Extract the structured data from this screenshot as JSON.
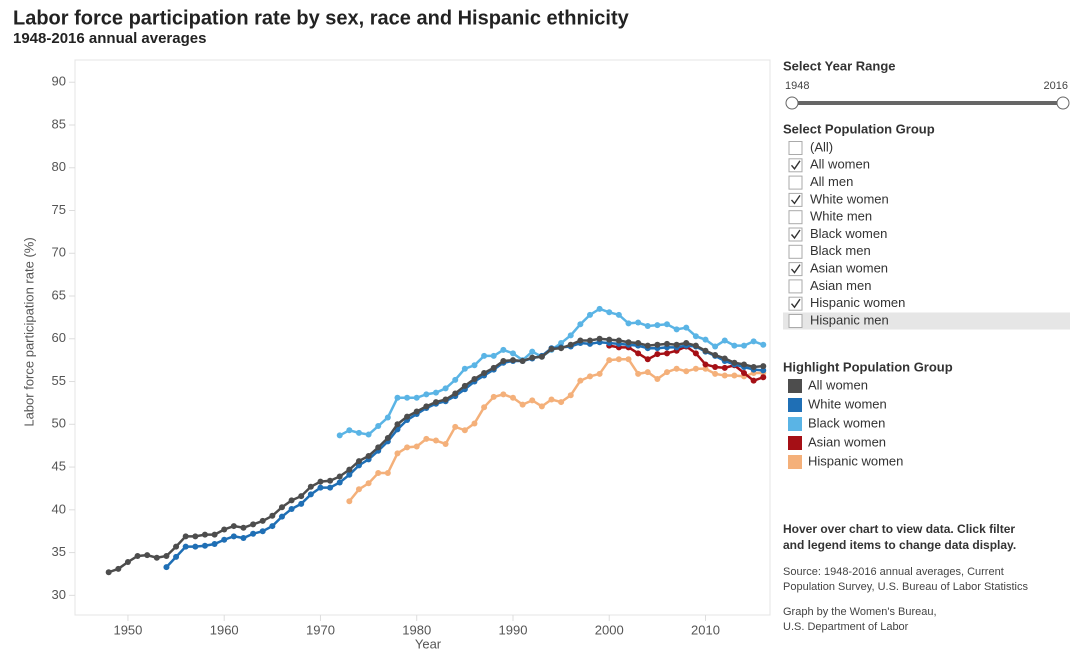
{
  "chart_data": {
    "type": "line",
    "title": "Labor force participation rate by sex, race and Hispanic ethnicity",
    "subtitle": "1948-2016 annual averages",
    "x_label": "Year",
    "y_label": "Labor force participation rate (%)",
    "xlim": [
      1944.5,
      2016.7
    ],
    "xticks": [
      1950,
      1960,
      1970,
      1980,
      1990,
      2000,
      2010
    ],
    "ylim": [
      27.7,
      92.6
    ],
    "yticks": [
      30,
      35,
      40,
      45,
      50,
      55,
      60,
      65,
      70,
      75,
      80,
      85,
      90
    ],
    "legend_title": "Highlight Population Group",
    "x": [
      1948,
      1949,
      1950,
      1951,
      1952,
      1953,
      1954,
      1955,
      1956,
      1957,
      1958,
      1959,
      1960,
      1961,
      1962,
      1963,
      1964,
      1965,
      1966,
      1967,
      1968,
      1969,
      1970,
      1971,
      1972,
      1973,
      1974,
      1975,
      1976,
      1977,
      1978,
      1979,
      1980,
      1981,
      1982,
      1983,
      1984,
      1985,
      1986,
      1987,
      1988,
      1989,
      1990,
      1991,
      1992,
      1993,
      1994,
      1995,
      1996,
      1997,
      1998,
      1999,
      2000,
      2001,
      2002,
      2003,
      2004,
      2005,
      2006,
      2007,
      2008,
      2009,
      2010,
      2011,
      2012,
      2013,
      2014,
      2015,
      2016
    ],
    "series": [
      {
        "name": "All women",
        "color": "#4d4d4d",
        "values": [
          32.7,
          33.1,
          33.9,
          34.6,
          34.7,
          34.4,
          34.6,
          35.7,
          36.9,
          36.9,
          37.1,
          37.1,
          37.7,
          38.1,
          37.9,
          38.3,
          38.7,
          39.3,
          40.3,
          41.1,
          41.6,
          42.7,
          43.3,
          43.4,
          43.9,
          44.7,
          45.7,
          46.3,
          47.3,
          48.4,
          50.0,
          50.9,
          51.5,
          52.1,
          52.6,
          52.9,
          53.6,
          54.5,
          55.3,
          56.0,
          56.6,
          57.4,
          57.5,
          57.4,
          57.8,
          57.9,
          58.8,
          58.9,
          59.3,
          59.8,
          59.8,
          60.0,
          59.9,
          59.8,
          59.6,
          59.5,
          59.2,
          59.3,
          59.4,
          59.3,
          59.5,
          59.2,
          58.6,
          58.1,
          57.7,
          57.2,
          57.0,
          56.7,
          56.8
        ]
      },
      {
        "name": "White women",
        "color": "#1f6fb5",
        "values": [
          null,
          null,
          null,
          null,
          null,
          null,
          33.3,
          34.5,
          35.7,
          35.7,
          35.8,
          36.0,
          36.5,
          36.9,
          36.7,
          37.2,
          37.5,
          38.1,
          39.2,
          40.1,
          40.7,
          41.8,
          42.6,
          42.6,
          43.2,
          44.1,
          45.2,
          45.9,
          46.9,
          48.0,
          49.4,
          50.5,
          51.2,
          51.9,
          52.4,
          52.7,
          53.3,
          54.1,
          55.0,
          55.7,
          56.4,
          57.2,
          57.4,
          57.4,
          57.7,
          58.0,
          58.9,
          59.0,
          59.1,
          59.5,
          59.4,
          59.6,
          59.5,
          59.4,
          59.3,
          59.2,
          58.9,
          58.9,
          59.0,
          59.0,
          59.2,
          59.1,
          58.5,
          58.0,
          57.4,
          57.0,
          56.7,
          56.4,
          56.3
        ]
      },
      {
        "name": "Black women",
        "color": "#5ab4e5",
        "values": [
          null,
          null,
          null,
          null,
          null,
          null,
          null,
          null,
          null,
          null,
          null,
          null,
          null,
          null,
          null,
          null,
          null,
          null,
          null,
          null,
          null,
          null,
          null,
          null,
          48.7,
          49.3,
          49.0,
          48.8,
          49.8,
          50.8,
          53.1,
          53.1,
          53.1,
          53.5,
          53.7,
          54.2,
          55.2,
          56.5,
          56.9,
          58.0,
          58.0,
          58.7,
          58.3,
          57.5,
          58.5,
          57.9,
          58.7,
          59.5,
          60.4,
          61.7,
          62.8,
          63.5,
          63.1,
          62.8,
          61.8,
          61.9,
          61.5,
          61.6,
          61.7,
          61.1,
          61.3,
          60.3,
          59.9,
          59.1,
          59.8,
          59.2,
          59.2,
          59.7,
          59.3
        ]
      },
      {
        "name": "Asian women",
        "color": "#a50f15",
        "values": [
          null,
          null,
          null,
          null,
          null,
          null,
          null,
          null,
          null,
          null,
          null,
          null,
          null,
          null,
          null,
          null,
          null,
          null,
          null,
          null,
          null,
          null,
          null,
          null,
          null,
          null,
          null,
          null,
          null,
          null,
          null,
          null,
          null,
          null,
          null,
          null,
          null,
          null,
          null,
          null,
          null,
          null,
          null,
          null,
          null,
          null,
          null,
          null,
          null,
          null,
          null,
          null,
          59.2,
          59.0,
          59.0,
          58.3,
          57.6,
          58.2,
          58.3,
          58.6,
          59.1,
          58.3,
          57.0,
          56.7,
          56.6,
          56.9,
          56.0,
          55.1,
          55.5
        ]
      },
      {
        "name": "Hispanic women",
        "color": "#f4b07a",
        "values": [
          null,
          null,
          null,
          null,
          null,
          null,
          null,
          null,
          null,
          null,
          null,
          null,
          null,
          null,
          null,
          null,
          null,
          null,
          null,
          null,
          null,
          null,
          null,
          null,
          null,
          41.0,
          42.4,
          43.1,
          44.3,
          44.3,
          46.6,
          47.3,
          47.4,
          48.3,
          48.1,
          47.7,
          49.7,
          49.3,
          50.1,
          52.0,
          53.2,
          53.5,
          53.1,
          52.3,
          52.8,
          52.1,
          52.9,
          52.6,
          53.4,
          55.1,
          55.6,
          55.9,
          57.5,
          57.6,
          57.6,
          55.9,
          56.1,
          55.3,
          56.1,
          56.5,
          56.2,
          56.5,
          56.5,
          55.9,
          55.7,
          55.7,
          55.6,
          56.0,
          56.0
        ]
      }
    ]
  },
  "year_range": {
    "title": "Select Year Range",
    "from": "1948",
    "to": "2016"
  },
  "population_filter": {
    "title": "Select Population Group",
    "options": [
      {
        "label": "(All)",
        "checked": false
      },
      {
        "label": "All women",
        "checked": true
      },
      {
        "label": "All men",
        "checked": false
      },
      {
        "label": "White women",
        "checked": true
      },
      {
        "label": "White men",
        "checked": false
      },
      {
        "label": "Black women",
        "checked": true
      },
      {
        "label": "Black men",
        "checked": false
      },
      {
        "label": "Asian women",
        "checked": true
      },
      {
        "label": "Asian men",
        "checked": false
      },
      {
        "label": "Hispanic women",
        "checked": true
      },
      {
        "label": "Hispanic men",
        "checked": false,
        "hovered": true
      }
    ]
  },
  "notes": {
    "instructions": [
      "Hover over chart to view data. Click filter",
      "and legend items to change data display."
    ],
    "source": [
      "Source: 1948-2016 annual averages, Current",
      "Population Survey, U.S. Bureau of Labor Statistics"
    ],
    "credit": [
      "Graph by the Women's Bureau,",
      "U.S. Department of Labor"
    ]
  }
}
